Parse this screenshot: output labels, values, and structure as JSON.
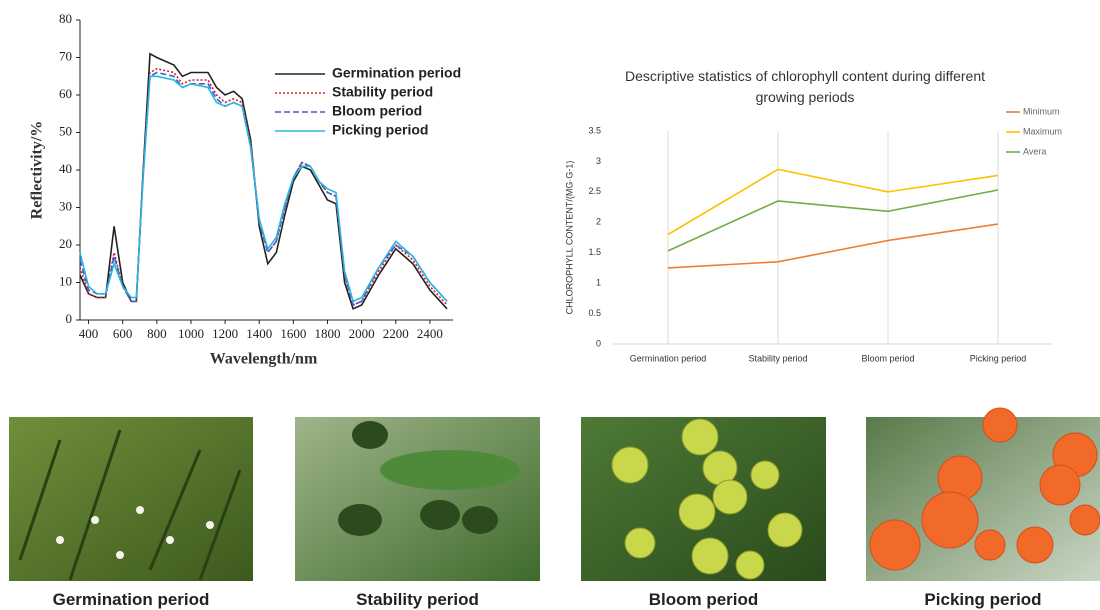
{
  "chart_data": [
    {
      "type": "line",
      "x_label": "Wavelength/nm",
      "y_label": "Reflectivity/%",
      "x": [
        350,
        400,
        450,
        500,
        550,
        600,
        650,
        680,
        720,
        760,
        800,
        900,
        950,
        1000,
        1100,
        1150,
        1200,
        1250,
        1300,
        1350,
        1400,
        1450,
        1500,
        1550,
        1600,
        1650,
        1700,
        1750,
        1800,
        1850,
        1900,
        1950,
        2000,
        2100,
        2200,
        2300,
        2400,
        2500
      ],
      "series": [
        {
          "name": "Germination period",
          "color": "#222222",
          "dash": "solid",
          "values": [
            12,
            7,
            6,
            6,
            25,
            10,
            5,
            5,
            40,
            71,
            70,
            68,
            65,
            66,
            66,
            62,
            60,
            61,
            59,
            48,
            25,
            15,
            18,
            28,
            37,
            41,
            40,
            36,
            32,
            31,
            10,
            3,
            4,
            12,
            19,
            15,
            8,
            3
          ]
        },
        {
          "name": "Stability period",
          "color": "#d0202a",
          "dash": "dotted",
          "values": [
            14,
            7,
            6,
            6,
            18,
            9,
            5,
            5,
            40,
            66,
            67,
            66,
            63,
            64,
            64,
            60,
            58,
            59,
            58,
            47,
            27,
            18,
            21,
            30,
            38,
            42,
            41,
            37,
            34,
            33,
            12,
            4,
            5,
            13,
            20,
            16,
            9,
            4
          ]
        },
        {
          "name": "Bloom period",
          "color": "#3a5fcd",
          "dash": "dashed",
          "values": [
            16,
            8,
            7,
            7,
            17,
            9,
            5,
            5,
            39,
            65,
            66,
            65,
            62,
            63,
            63,
            59,
            57,
            58,
            57,
            46,
            26,
            18,
            21,
            30,
            38,
            42,
            41,
            37,
            34,
            33,
            12,
            4,
            5,
            14,
            20,
            17,
            10,
            5
          ]
        },
        {
          "name": "Picking period",
          "color": "#2ab5e0",
          "dash": "solid",
          "values": [
            18,
            9,
            7,
            7,
            15,
            9,
            6,
            6,
            38,
            65,
            65,
            64,
            62,
            63,
            62,
            58,
            57,
            58,
            57,
            46,
            27,
            19,
            22,
            31,
            38,
            41,
            41,
            37,
            35,
            34,
            13,
            5,
            6,
            14,
            21,
            17,
            10,
            5
          ]
        }
      ],
      "xlim": [
        350,
        2500
      ],
      "xticks": [
        400,
        600,
        800,
        1000,
        1200,
        1400,
        1600,
        1800,
        2000,
        2200,
        2400
      ],
      "ylim": [
        0,
        80
      ],
      "yticks": [
        0,
        10,
        20,
        30,
        40,
        50,
        60,
        70,
        80
      ],
      "grid": false,
      "legend": "upper right"
    },
    {
      "type": "line",
      "title": "Descriptive statistics of chlorophyll content during different growing periods",
      "y_label": "CHLOROPHYLL CONTENT/(MG·G-1)",
      "categories": [
        "Germination period",
        "Stability period",
        "Bloom period",
        "Picking period"
      ],
      "series": [
        {
          "name": "Minimum",
          "color": "#ed7d31",
          "dash": "solid",
          "values": [
            1.25,
            1.35,
            1.7,
            1.97
          ]
        },
        {
          "name": "Maximum",
          "color": "#ffc000",
          "dash": "solid",
          "values": [
            1.8,
            2.87,
            2.5,
            2.77
          ]
        },
        {
          "name": "Avera",
          "color": "#70ad47",
          "dash": "solid",
          "values": [
            1.53,
            2.35,
            2.18,
            2.53
          ]
        }
      ],
      "ylim": [
        0,
        3.5
      ],
      "yticks": [
        0,
        0.5,
        1,
        1.5,
        2,
        2.5,
        3,
        3.5
      ],
      "grid": true,
      "legend": "upper right"
    }
  ],
  "photos": [
    {
      "caption": "Germination period"
    },
    {
      "caption": "Stability period"
    },
    {
      "caption": "Bloom period"
    },
    {
      "caption": "Picking period"
    }
  ]
}
